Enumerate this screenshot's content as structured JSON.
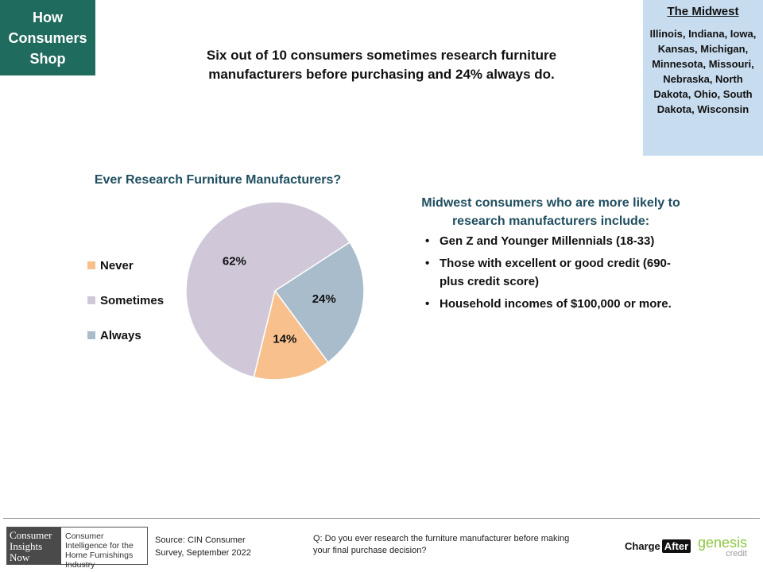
{
  "tag_label": "How Consumers Shop",
  "region": {
    "title": "The Midwest",
    "states": "Illinois, Indiana, Iowa, Kansas, Michigan, Minnesota, Missouri, Nebraska, North Dakota, Ohio, South Dakota, Wisconsin"
  },
  "headline": "Six out of 10 consumers sometimes research furniture manufacturers before purchasing  and 24% always do.",
  "chart_data": {
    "type": "pie",
    "title": "Ever Research Furniture Manufacturers?",
    "categories": [
      "Never",
      "Sometimes",
      "Always"
    ],
    "values": [
      14,
      62,
      24
    ],
    "labels": [
      "14%",
      "62%",
      "24%"
    ],
    "colors": [
      "#f8c08c",
      "#d0c8d8",
      "#a8bccc"
    ],
    "legend_position": "left"
  },
  "callout": {
    "title": "Midwest consumers who are more likely to research manufacturers include:",
    "bullets": [
      "Gen Z and Younger Millennials (18-33)",
      "Those with excellent or good credit (690-plus credit score)",
      "Household incomes of $100,000 or more."
    ]
  },
  "footer": {
    "cin_logo_left": [
      "Consumer",
      "Insights",
      "Now"
    ],
    "cin_logo_right": "Consumer Intelligence for the Home Furnishings Industry",
    "source": "Source: CIN Consumer Survey, September  2022",
    "question": "Q: Do you ever  research the furniture manufacturer before making your final purchase decision?",
    "chargeafter": {
      "charge": "Charge",
      "after": "After"
    },
    "genesis": {
      "main": "genesis",
      "sub": "credit"
    }
  },
  "colors": {
    "tag_background": "#1f6b5e",
    "region_background": "#c8dcef",
    "accent_text": "#1f4e5f"
  }
}
